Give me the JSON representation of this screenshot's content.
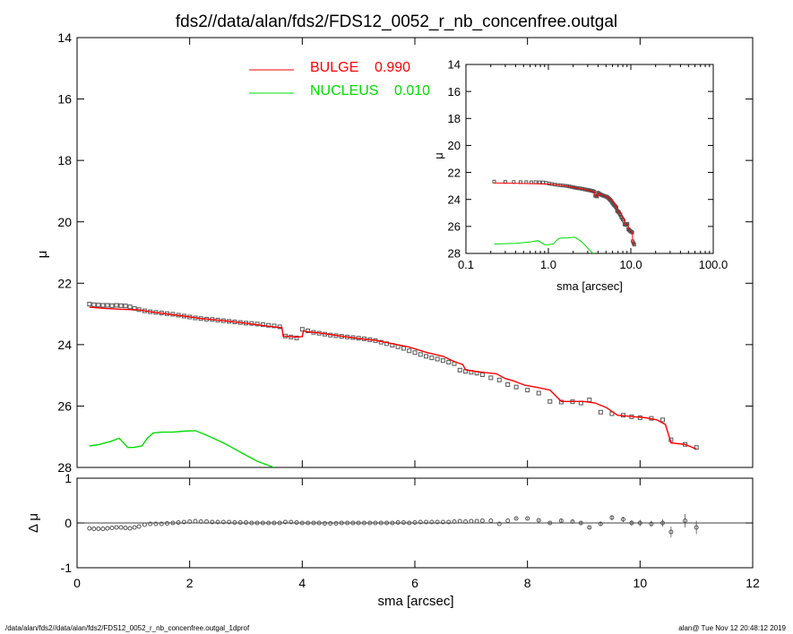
{
  "title": "fds2//data/alan/fds2/FDS12_0052_r_nb_concenfree.outgal",
  "footer_left": "/data/alan/fds2//data/alan/fds2/FDS12_0052_r_nb_concenfree.outgal_1dprof",
  "footer_right": "alan@  Tue Nov 12 20:48:12 2019",
  "colors": {
    "bulge": "#ff0000",
    "nucleus": "#00dd00",
    "data": "#555555",
    "axes": "#000000"
  },
  "chart_data": [
    {
      "type": "scatter",
      "panel": "main",
      "xlabel": "",
      "ylabel": "μ",
      "xlim": [
        0,
        12
      ],
      "ylim": [
        28,
        14
      ],
      "xticks": [
        0,
        2,
        4,
        6,
        8,
        10,
        12
      ],
      "yticks": [
        14,
        16,
        18,
        20,
        22,
        24,
        26,
        28
      ],
      "legend": [
        {
          "label": "BULGE",
          "value": "0.990",
          "color": "#ff0000"
        },
        {
          "label": "NUCLEUS",
          "value": "0.010",
          "color": "#00dd00"
        }
      ],
      "data_points": {
        "x": [
          0.22,
          0.3,
          0.38,
          0.46,
          0.54,
          0.62,
          0.7,
          0.78,
          0.86,
          0.94,
          1.02,
          1.1,
          1.2,
          1.3,
          1.4,
          1.5,
          1.6,
          1.7,
          1.8,
          1.9,
          2.0,
          2.1,
          2.2,
          2.3,
          2.4,
          2.5,
          2.6,
          2.7,
          2.8,
          2.9,
          3.0,
          3.1,
          3.2,
          3.3,
          3.4,
          3.5,
          3.6,
          3.7,
          3.8,
          3.9,
          4.0,
          4.1,
          4.2,
          4.3,
          4.4,
          4.5,
          4.6,
          4.7,
          4.8,
          4.9,
          5.0,
          5.1,
          5.2,
          5.3,
          5.4,
          5.5,
          5.6,
          5.7,
          5.8,
          5.9,
          6.0,
          6.1,
          6.2,
          6.3,
          6.4,
          6.5,
          6.6,
          6.7,
          6.8,
          6.9,
          7.0,
          7.1,
          7.2,
          7.35,
          7.5,
          7.65,
          7.8,
          8.0,
          8.2,
          8.4,
          8.6,
          8.8,
          8.95,
          9.1,
          9.3,
          9.5,
          9.7,
          9.85,
          10.0,
          10.2,
          10.4,
          10.55,
          10.8,
          11.0
        ],
        "y": [
          22.68,
          22.7,
          22.71,
          22.72,
          22.72,
          22.73,
          22.72,
          22.73,
          22.74,
          22.77,
          22.82,
          22.86,
          22.9,
          22.93,
          22.95,
          22.97,
          22.99,
          23.01,
          23.04,
          23.07,
          23.1,
          23.13,
          23.15,
          23.17,
          23.18,
          23.2,
          23.22,
          23.24,
          23.26,
          23.28,
          23.3,
          23.31,
          23.33,
          23.35,
          23.37,
          23.39,
          23.42,
          23.72,
          23.75,
          23.78,
          23.5,
          23.55,
          23.6,
          23.63,
          23.66,
          23.69,
          23.71,
          23.73,
          23.75,
          23.77,
          23.79,
          23.81,
          23.84,
          23.87,
          23.92,
          23.97,
          24.02,
          24.07,
          24.12,
          24.2,
          24.26,
          24.32,
          24.38,
          24.43,
          24.47,
          24.52,
          24.57,
          24.62,
          24.83,
          24.87,
          24.9,
          24.93,
          24.98,
          25.08,
          25.15,
          25.3,
          25.38,
          25.48,
          25.58,
          25.85,
          25.87,
          25.86,
          25.9,
          25.8,
          26.2,
          26.25,
          26.3,
          26.35,
          26.38,
          26.4,
          26.45,
          27.1,
          27.25,
          27.35
        ]
      },
      "series": [
        {
          "name": "BULGE",
          "color": "#ff0000",
          "x": [
            0.22,
            0.5,
            0.8,
            1.0,
            1.1,
            1.3,
            1.6,
            1.9,
            2.2,
            2.6,
            3.0,
            3.4,
            3.64,
            3.66,
            3.9,
            4.0,
            4.02,
            4.1,
            4.3,
            4.6,
            5.0,
            5.3,
            5.6,
            5.9,
            6.2,
            6.5,
            6.7,
            6.85,
            6.9,
            7.1,
            7.3,
            7.45,
            7.6,
            7.75,
            7.95,
            8.2,
            8.4,
            8.6,
            8.65,
            8.8,
            9.0,
            9.2,
            9.4,
            9.6,
            9.9,
            10.1,
            10.3,
            10.45,
            10.55,
            10.8,
            11.0
          ],
          "y": [
            22.78,
            22.82,
            22.85,
            22.86,
            22.87,
            22.93,
            23.0,
            23.07,
            23.15,
            23.22,
            23.3,
            23.4,
            23.45,
            23.72,
            23.75,
            23.74,
            23.55,
            23.58,
            23.62,
            23.7,
            23.8,
            23.86,
            23.97,
            24.08,
            24.25,
            24.38,
            24.55,
            24.65,
            24.82,
            24.88,
            24.92,
            24.95,
            25.1,
            25.18,
            25.32,
            25.4,
            25.48,
            25.85,
            25.85,
            25.85,
            25.85,
            25.9,
            26.05,
            26.3,
            26.35,
            26.38,
            26.45,
            26.6,
            27.2,
            27.25,
            27.4
          ]
        },
        {
          "name": "NUCLEUS",
          "color": "#00dd00",
          "x": [
            0.22,
            0.4,
            0.6,
            0.75,
            0.9,
            1.0,
            1.15,
            1.25,
            1.35,
            1.5,
            1.7,
            1.9,
            2.1,
            2.3,
            2.6,
            2.9,
            3.2,
            3.5
          ],
          "y": [
            27.3,
            27.25,
            27.15,
            27.05,
            27.35,
            27.35,
            27.3,
            27.05,
            26.88,
            26.85,
            26.85,
            26.82,
            26.8,
            26.95,
            27.2,
            27.5,
            27.8,
            28.0
          ]
        }
      ]
    },
    {
      "type": "scatter",
      "panel": "residuals",
      "xlabel": "sma [arcsec]",
      "ylabel": "Δ μ",
      "xlim": [
        0,
        12
      ],
      "ylim": [
        -1,
        1
      ],
      "xticks": [
        0,
        2,
        4,
        6,
        8,
        10,
        12
      ],
      "yticks": [
        -1,
        0,
        1
      ],
      "reference_line": 0,
      "points": {
        "x": [
          0.22,
          0.3,
          0.38,
          0.46,
          0.54,
          0.62,
          0.7,
          0.78,
          0.86,
          0.94,
          1.02,
          1.1,
          1.2,
          1.3,
          1.4,
          1.5,
          1.6,
          1.7,
          1.8,
          1.9,
          2.0,
          2.1,
          2.2,
          2.3,
          2.4,
          2.5,
          2.6,
          2.7,
          2.8,
          2.9,
          3.0,
          3.1,
          3.2,
          3.3,
          3.4,
          3.5,
          3.6,
          3.7,
          3.8,
          3.9,
          4.0,
          4.1,
          4.2,
          4.3,
          4.4,
          4.5,
          4.6,
          4.7,
          4.8,
          4.9,
          5.0,
          5.1,
          5.2,
          5.3,
          5.4,
          5.5,
          5.6,
          5.7,
          5.8,
          5.9,
          6.0,
          6.1,
          6.2,
          6.3,
          6.4,
          6.5,
          6.6,
          6.7,
          6.8,
          6.9,
          7.0,
          7.1,
          7.2,
          7.35,
          7.5,
          7.65,
          7.8,
          8.0,
          8.2,
          8.4,
          8.6,
          8.8,
          8.95,
          9.1,
          9.3,
          9.5,
          9.7,
          9.85,
          10.0,
          10.2,
          10.4,
          10.55,
          10.8,
          11.0
        ],
        "y": [
          -0.12,
          -0.13,
          -0.13,
          -0.13,
          -0.12,
          -0.11,
          -0.1,
          -0.1,
          -0.11,
          -0.12,
          -0.1,
          -0.08,
          -0.04,
          -0.02,
          -0.02,
          -0.02,
          -0.01,
          0.0,
          0.01,
          0.02,
          0.03,
          0.04,
          0.03,
          0.03,
          0.02,
          0.02,
          0.02,
          0.02,
          0.01,
          0.01,
          0.01,
          0.0,
          0.0,
          0.0,
          0.0,
          0.0,
          0.0,
          0.02,
          0.02,
          0.01,
          0.0,
          0.0,
          0.0,
          0.0,
          -0.01,
          -0.01,
          -0.01,
          0.0,
          0.0,
          0.0,
          0.0,
          0.0,
          0.0,
          0.0,
          0.0,
          0.0,
          0.0,
          0.01,
          0.01,
          0.0,
          0.01,
          0.02,
          0.02,
          0.02,
          0.02,
          0.02,
          0.02,
          0.03,
          0.04,
          0.03,
          0.04,
          0.04,
          0.05,
          0.05,
          -0.02,
          0.05,
          0.1,
          0.1,
          0.06,
          0.0,
          0.05,
          0.03,
          0.0,
          -0.1,
          -0.02,
          0.12,
          0.08,
          0.0,
          0.0,
          -0.02,
          0.0,
          -0.2,
          0.05,
          -0.1
        ],
        "err": [
          0.01,
          0.01,
          0.01,
          0.01,
          0.01,
          0.01,
          0.01,
          0.01,
          0.01,
          0.01,
          0.01,
          0.01,
          0.01,
          0.01,
          0.01,
          0.01,
          0.01,
          0.01,
          0.01,
          0.01,
          0.01,
          0.01,
          0.01,
          0.01,
          0.01,
          0.01,
          0.01,
          0.01,
          0.01,
          0.01,
          0.01,
          0.01,
          0.01,
          0.01,
          0.01,
          0.01,
          0.01,
          0.01,
          0.01,
          0.01,
          0.01,
          0.01,
          0.01,
          0.01,
          0.01,
          0.01,
          0.01,
          0.01,
          0.01,
          0.01,
          0.01,
          0.01,
          0.01,
          0.01,
          0.01,
          0.01,
          0.01,
          0.01,
          0.01,
          0.01,
          0.01,
          0.01,
          0.01,
          0.01,
          0.01,
          0.01,
          0.01,
          0.01,
          0.01,
          0.01,
          0.01,
          0.01,
          0.01,
          0.01,
          0.01,
          0.01,
          0.02,
          0.02,
          0.02,
          0.02,
          0.03,
          0.03,
          0.03,
          0.04,
          0.05,
          0.06,
          0.06,
          0.06,
          0.07,
          0.07,
          0.08,
          0.12,
          0.15,
          0.15
        ]
      }
    },
    {
      "type": "scatter",
      "panel": "inset",
      "xlabel": "sma [arcsec]",
      "ylabel": "μ",
      "xscale": "log",
      "xlim": [
        0.1,
        100.0
      ],
      "ylim": [
        28,
        14
      ],
      "xtick_labels": [
        "0.1",
        "1.0",
        "10.0",
        "100.0"
      ],
      "xticks": [
        0.1,
        1.0,
        10.0,
        100.0
      ],
      "yticks": [
        14,
        16,
        18,
        20,
        22,
        24,
        26,
        28
      ]
    }
  ]
}
